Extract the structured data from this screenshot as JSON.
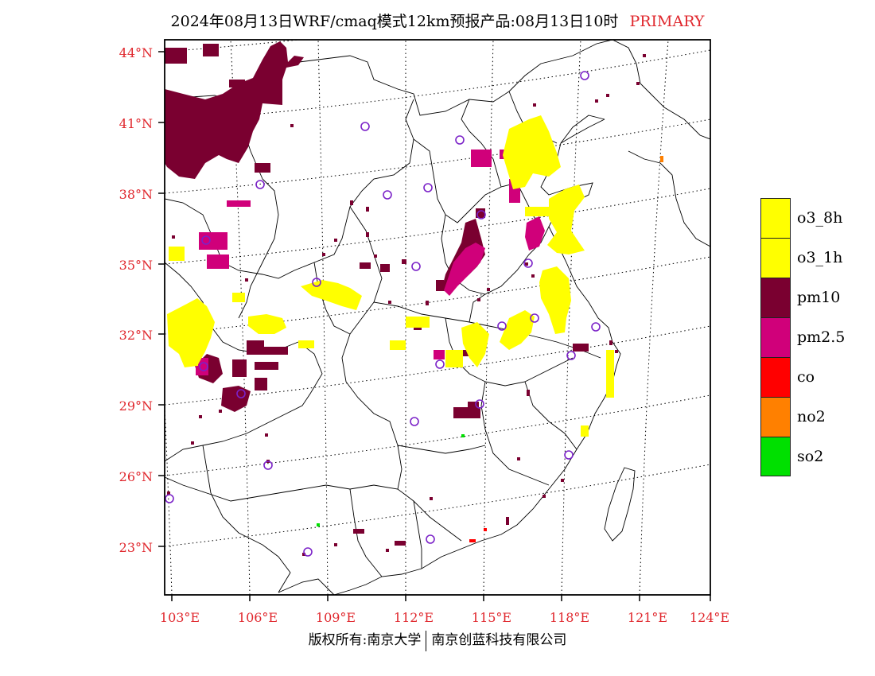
{
  "title": {
    "main": "2024年08月13日WRF/cmaq模式12km预报产品:08月13日10时",
    "tag": "PRIMARY"
  },
  "map": {
    "lat_labels": [
      "44°N",
      "41°N",
      "38°N",
      "35°N",
      "32°N",
      "29°N",
      "26°N",
      "23°N"
    ],
    "lon_labels": [
      "103°E",
      "106°E",
      "109°E",
      "112°E",
      "115°E",
      "118°E",
      "121°E",
      "124°E"
    ],
    "background": "#ffffff"
  },
  "legend": [
    {
      "label": "o3_8h",
      "color": "#ffff00"
    },
    {
      "label": "o3_1h",
      "color": "#ffff00"
    },
    {
      "label": "pm10",
      "color": "#7a0030"
    },
    {
      "label": "pm2.5",
      "color": "#d0007a"
    },
    {
      "label": "co",
      "color": "#ff0000"
    },
    {
      "label": "no2",
      "color": "#ff8000"
    },
    {
      "label": "so2",
      "color": "#00e000"
    }
  ],
  "footer": {
    "left": "版权所有:南京大学",
    "right": "南京创蓝科技有限公司"
  }
}
